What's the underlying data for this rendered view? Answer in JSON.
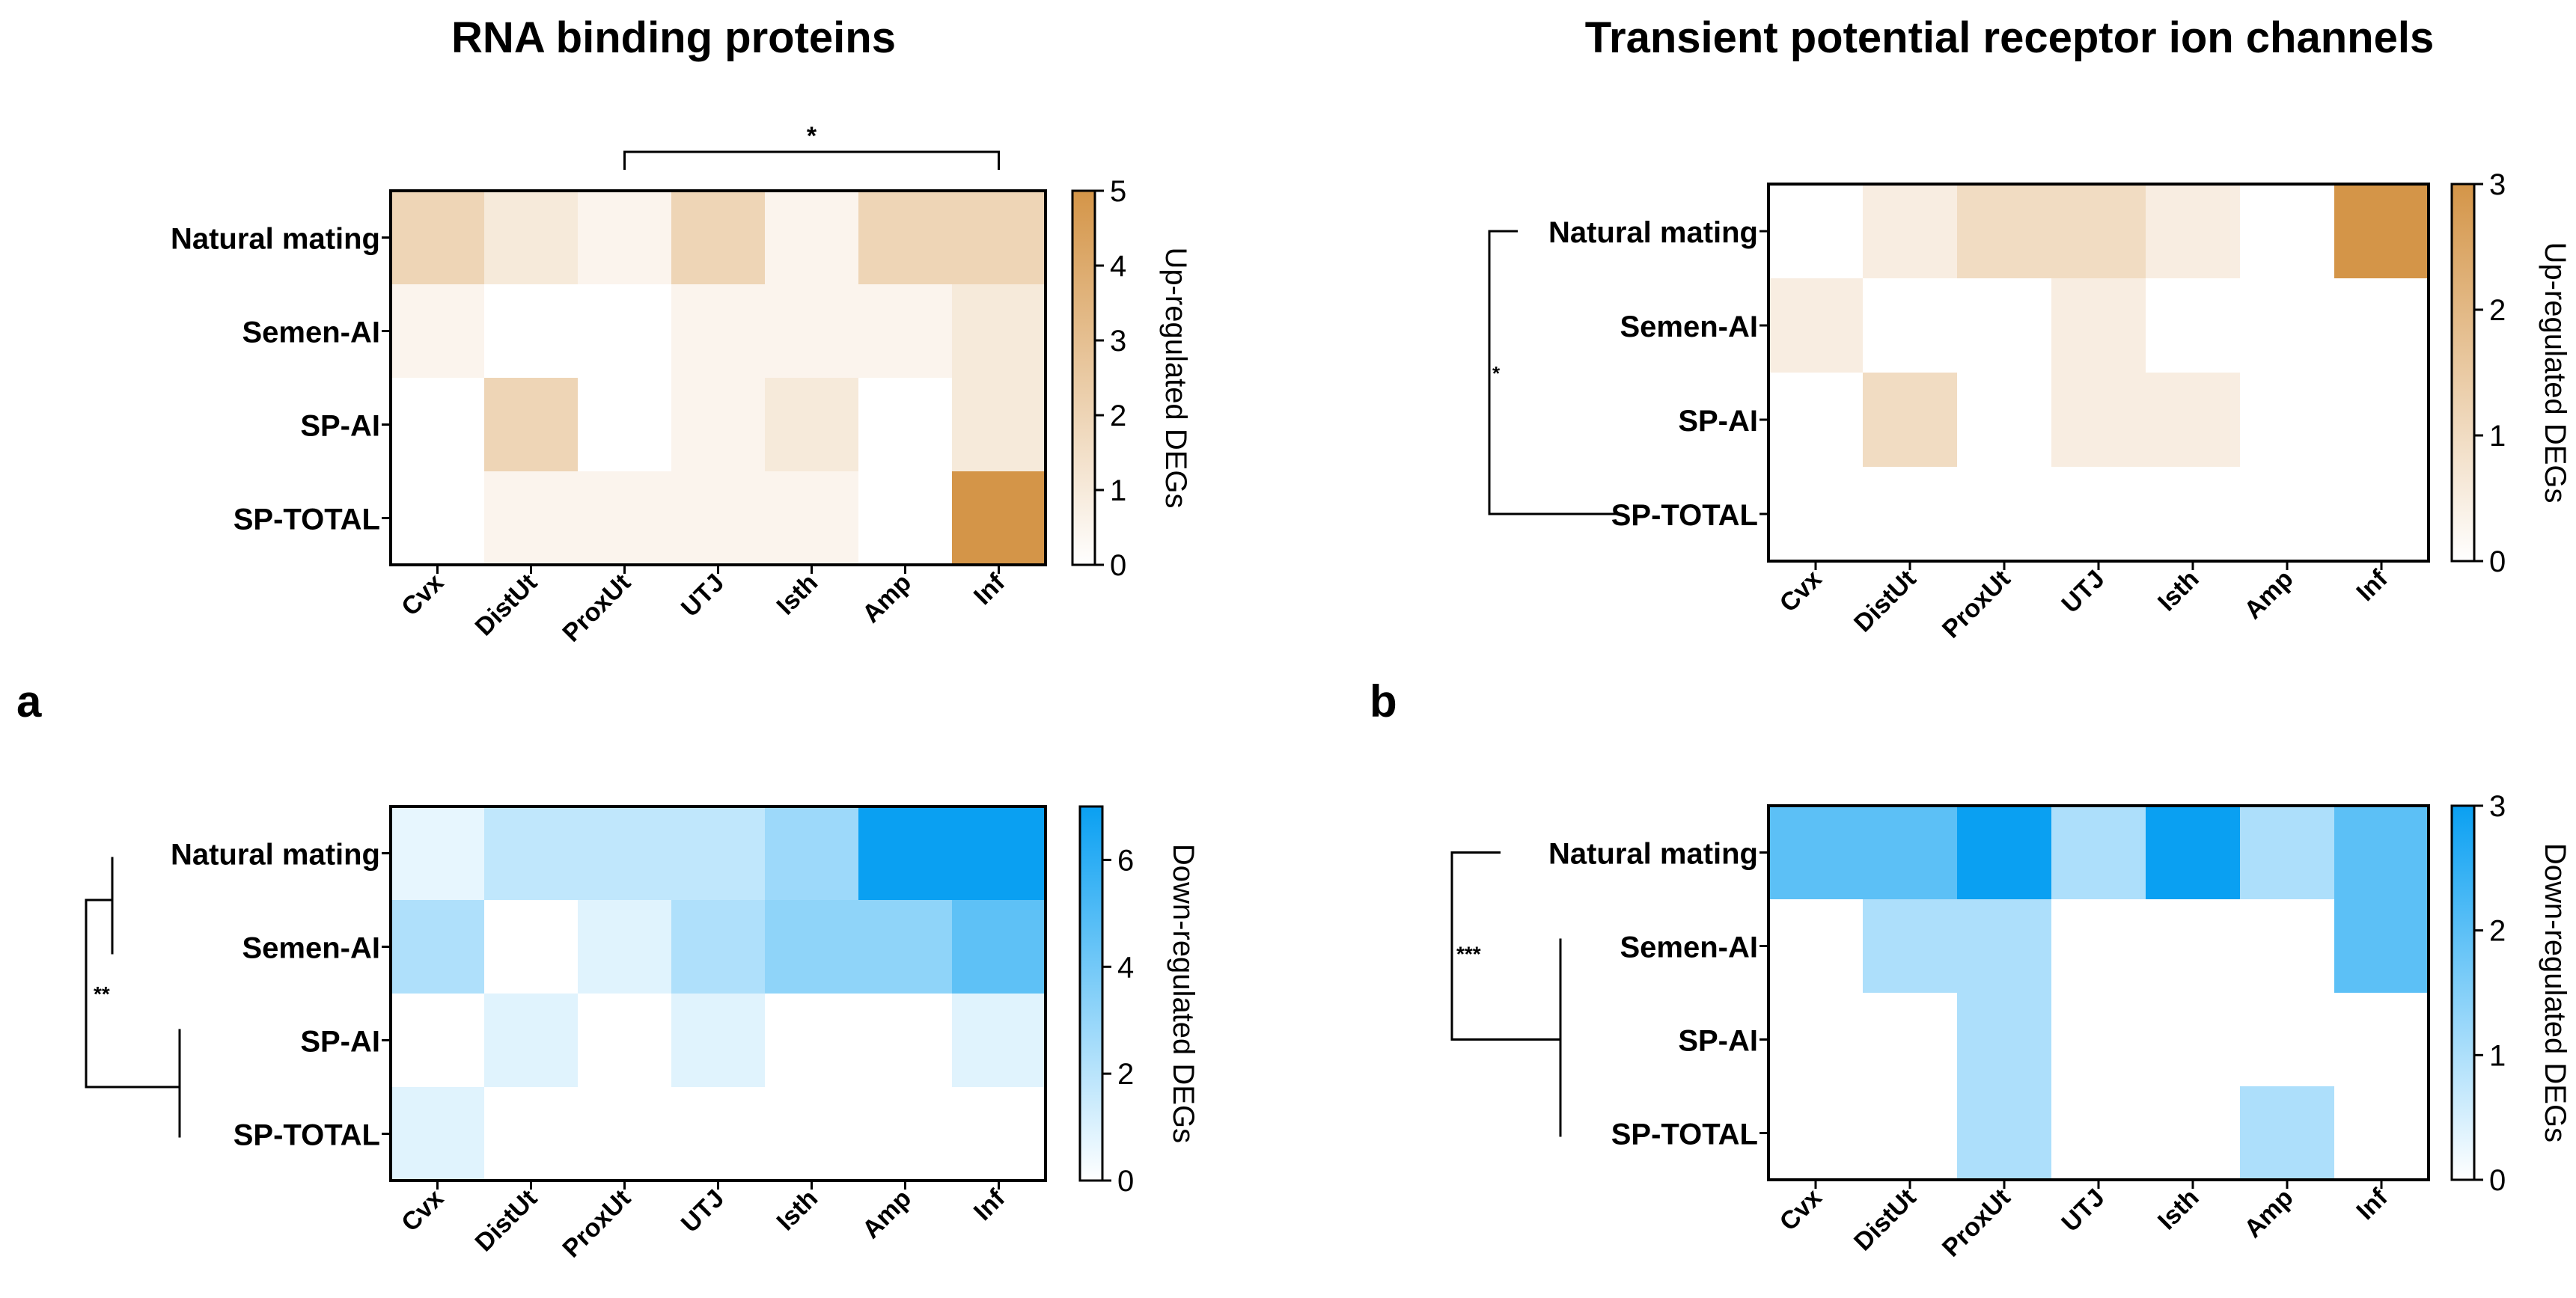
{
  "titles": {
    "left": "RNA binding proteins",
    "right": "Transient potential receptor ion channels"
  },
  "panel_letters": {
    "a": "a",
    "b": "b"
  },
  "colors": {
    "up_max": "#d49548",
    "down_max": "#0aa0f2",
    "empty": "#ffffff",
    "axis": "#000000"
  },
  "chart_data": [
    {
      "id": "a_up",
      "type": "heatmap",
      "title": "RNA binding proteins",
      "direction": "up",
      "rows": [
        "Natural mating",
        "Semen-AI",
        "SP-AI",
        "SP-TOTAL"
      ],
      "columns": [
        "Cvx",
        "DistUt",
        "ProxUt",
        "UTJ",
        "Isth",
        "Amp",
        "Inf"
      ],
      "values": [
        [
          2,
          1,
          0.5,
          2,
          0.5,
          2,
          2
        ],
        [
          0.5,
          0,
          0,
          0.5,
          0.5,
          0.5,
          1
        ],
        [
          0,
          2,
          0,
          0.5,
          1,
          0,
          1
        ],
        [
          0,
          0.5,
          0.5,
          0.5,
          0.5,
          0,
          5
        ]
      ],
      "colorbar": {
        "label": "Up-regulated DEGs",
        "min": 0,
        "max": 5,
        "ticks": [
          "0",
          "1",
          "2",
          "3",
          "4",
          "5"
        ]
      },
      "significance": {
        "type": "column-bracket",
        "from": "ProxUt",
        "to": "Inf",
        "label": "*"
      }
    },
    {
      "id": "b_up",
      "type": "heatmap",
      "title": "Transient potential receptor ion channels",
      "direction": "up",
      "rows": [
        "Natural mating",
        "Semen-AI",
        "SP-AI",
        "SP-TOTAL"
      ],
      "columns": [
        "Cvx",
        "DistUt",
        "ProxUt",
        "UTJ",
        "Isth",
        "Amp",
        "Inf"
      ],
      "values": [
        [
          0,
          0.5,
          1,
          1,
          0.5,
          0,
          3
        ],
        [
          0.5,
          0,
          0,
          0.5,
          0,
          0,
          0
        ],
        [
          0,
          1,
          0,
          0.5,
          0.5,
          0,
          0
        ],
        [
          0,
          0,
          0,
          0,
          0,
          0,
          0
        ]
      ],
      "colorbar": {
        "label": "Up-regulated DEGs",
        "min": 0,
        "max": 3,
        "ticks": [
          "0",
          "1",
          "2",
          "3"
        ]
      },
      "significance": {
        "type": "row-bracket",
        "from": "Natural mating",
        "to": "SP-TOTAL",
        "label": "*"
      }
    },
    {
      "id": "a_down",
      "type": "heatmap",
      "title": "RNA binding proteins",
      "direction": "down",
      "rows": [
        "Natural mating",
        "Semen-AI",
        "SP-AI",
        "SP-TOTAL"
      ],
      "columns": [
        "Cvx",
        "DistUt",
        "ProxUt",
        "UTJ",
        "Isth",
        "Amp",
        "Inf"
      ],
      "values": [
        [
          0.7,
          1.8,
          1.8,
          1.8,
          2.8,
          7,
          7
        ],
        [
          2.3,
          0,
          0.9,
          2.3,
          3.2,
          3.2,
          4.6
        ],
        [
          0,
          0.9,
          0,
          0.9,
          0,
          0,
          0.9
        ],
        [
          0.9,
          0,
          0,
          0,
          0,
          0,
          0
        ]
      ],
      "colorbar": {
        "label": "Down-regulated DEGs",
        "min": 0,
        "max": 7,
        "ticks": [
          "0",
          "2",
          "4",
          "6"
        ],
        "tick_values": [
          0,
          2,
          4,
          6
        ]
      },
      "significance": {
        "type": "dendrogram",
        "label": "**"
      }
    },
    {
      "id": "b_down",
      "type": "heatmap",
      "title": "Transient potential receptor ion channels",
      "direction": "down",
      "rows": [
        "Natural mating",
        "Semen-AI",
        "SP-AI",
        "SP-TOTAL"
      ],
      "columns": [
        "Cvx",
        "DistUt",
        "ProxUt",
        "UTJ",
        "Isth",
        "Amp",
        "Inf"
      ],
      "values": [
        [
          2,
          2,
          3,
          1,
          3,
          1,
          2
        ],
        [
          0,
          1,
          1,
          0,
          0,
          0,
          2
        ],
        [
          0,
          0,
          1,
          0,
          0,
          0,
          0
        ],
        [
          0,
          0,
          1,
          0,
          0,
          1,
          0
        ]
      ],
      "colorbar": {
        "label": "Down-regulated DEGs",
        "min": 0,
        "max": 3,
        "ticks": [
          "0",
          "1",
          "2",
          "3"
        ]
      },
      "significance": {
        "type": "dendrogram",
        "label": "***"
      }
    }
  ]
}
